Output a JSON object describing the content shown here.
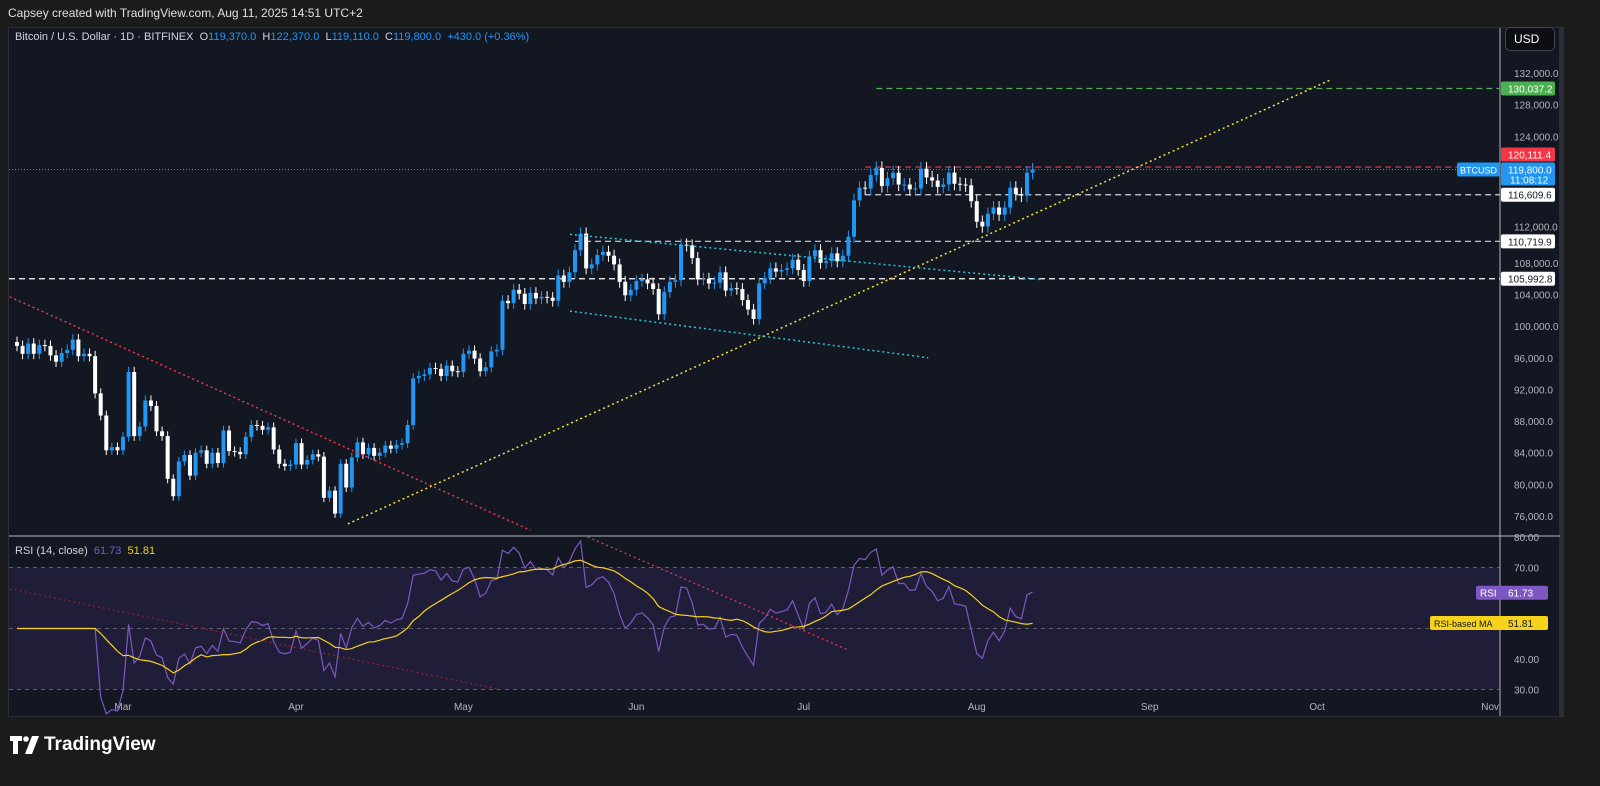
{
  "credit": "Capsey created with TradingView.com, Aug 11, 2025 14:51 UTC+2",
  "legend": {
    "symbol": "Bitcoin / U.S. Dollar · 1D · BITFINEX",
    "o_label": "O",
    "o": "119,370.0",
    "h_label": "H",
    "h": "122,370.0",
    "l_label": "L",
    "l": "119,110.0",
    "c_label": "C",
    "c": "119,800.0",
    "change": "+430.0 (+0.36%)"
  },
  "currency": "USD",
  "rsi_legend": {
    "title": "RSI (14, close)",
    "rsi": "61.73",
    "ma": "51.81"
  },
  "logo": "TradingView",
  "colors": {
    "up": "#2196f3",
    "down": "#ffffff",
    "rsi": "#7e57c2",
    "ma": "#f7d21b",
    "bg": "#131722"
  },
  "chart_data": [
    {
      "type": "candlestick",
      "title": "Bitcoin / U.S. Dollar · 1D · BITFINEX",
      "start_date": "Feb 10",
      "closes": [
        97.5,
        96.5,
        97.8,
        96.5,
        97.6,
        97.5,
        96.3,
        95.5,
        96.6,
        97,
        98.3,
        96.2,
        96.5,
        96.2,
        91.5,
        88.7,
        84.3,
        84.7,
        84.3,
        86,
        94.2,
        86.1,
        87.3,
        90.6,
        89.9,
        86.7,
        86.1,
        80.7,
        78.5,
        82.9,
        83.7,
        81.1,
        84,
        84.3,
        82.6,
        84,
        82.7,
        86.8,
        84.2,
        84.1,
        83.8,
        86,
        87.5,
        87.4,
        86.9,
        87.2,
        84.4,
        82.6,
        82.3,
        82.5,
        85.2,
        82.5,
        83.1,
        83.8,
        83.5,
        78.3,
        79.2,
        76.3,
        82.6,
        79.6,
        83.4,
        85.3,
        83.8,
        84.6,
        83.6,
        84,
        84.9,
        84.5,
        85,
        85.2,
        87.5,
        93.4,
        93.7,
        93.9,
        94.7,
        94.6,
        93.7,
        95,
        94.3,
        94.2,
        96.5,
        96.9,
        95.9,
        94.3,
        94.8,
        96.8,
        97,
        103.2,
        102.9,
        104.6,
        104.1,
        102.8,
        104.2,
        103.5,
        103.7,
        103.6,
        103.2,
        106.4,
        105.6,
        106.8,
        109.6,
        111.7,
        107.3,
        107.8,
        109,
        109.4,
        108.9,
        107.8,
        105.6,
        103.9,
        104.6,
        105.7,
        105.9,
        105.4,
        104.7,
        101.5,
        104.3,
        105.6,
        105.8,
        110.3,
        110.2,
        108.6,
        105.9,
        106,
        105.4,
        105.5,
        106.8,
        104.5,
        104.8,
        104.7,
        103.3,
        102.1,
        100.9,
        105.4,
        106.1,
        107.3,
        106.9,
        107.1,
        107.3,
        108.4,
        107.1,
        105.7,
        108.8,
        109.6,
        108,
        108.2,
        109.2,
        108.2,
        108.9,
        111.3,
        115.9,
        117.5,
        117.4,
        119.1,
        120,
        117.7,
        118.7,
        119.4,
        117.9,
        117.9,
        117.3,
        117.4,
        119.9,
        118.8,
        118.4,
        117.6,
        117.9,
        119.4,
        118,
        117.9,
        117.8,
        115.8,
        113.2,
        112.6,
        114.2,
        115,
        114.1,
        115,
        117.5,
        116.7,
        116.5,
        119.4,
        119.8
      ],
      "close_unit": "thousand USD",
      "y_ticks": [
        "132,000.0",
        "128,000.0",
        "124,000.0",
        "112,000.0",
        "108,000.0",
        "104,000.0",
        "100,000.0",
        "96,000.0",
        "92,000.0",
        "88,000.0",
        "84,000.0",
        "80,000.0",
        "76,000.0"
      ],
      "y_tick_values": [
        132000,
        128000,
        124000,
        112000,
        108000,
        104000,
        100000,
        96000,
        92000,
        88000,
        84000,
        80000,
        76000
      ],
      "x_ticks": [
        {
          "label": "Mar",
          "day": 19
        },
        {
          "label": "Apr",
          "day": 50
        },
        {
          "label": "May",
          "day": 80
        },
        {
          "label": "Jun",
          "day": 111
        },
        {
          "label": "Jul",
          "day": 141
        },
        {
          "label": "Aug",
          "day": 172
        },
        {
          "label": "Sep",
          "day": 203
        },
        {
          "label": "Oct",
          "day": 233
        },
        {
          "label": "Nov",
          "day": 264
        }
      ],
      "price_labels": [
        {
          "text": "130,037.2",
          "value": 130037.2,
          "bg": "#4caf50",
          "fg": "#ffffff",
          "line": "#4caf50",
          "from_day": 154
        },
        {
          "text": "120,111.4",
          "value": 120111.4,
          "bg": "#f23645",
          "fg": "#ffffff",
          "line": "#f23645",
          "from_day": 152
        },
        {
          "text": "116,609.6",
          "value": 116609.6,
          "bg": "#ffffff",
          "fg": "#131722",
          "line": "#d1d4dc",
          "from_day": 152
        },
        {
          "text": "110,719.9",
          "value": 110719.9,
          "bg": "#ffffff",
          "fg": "#131722",
          "line": "#d1d4dc",
          "from_day": 100
        },
        {
          "text": "105,992.8",
          "value": 105992.8,
          "bg": "#ffffff",
          "fg": "#131722",
          "line": "#ffffff",
          "from_day": -2
        }
      ],
      "last_price": {
        "symbol": "BTCUSD",
        "text": "119,800.0",
        "countdown": "11:08:12",
        "value": 119800
      },
      "trendlines": [
        {
          "color": "#f23645",
          "d1": -1.3,
          "p1": 103700,
          "d2": 92,
          "p2": 74200
        },
        {
          "color": "#f7e13b",
          "d1": 59.3,
          "p1": 75000,
          "d2": 235.3,
          "p2": 131100
        },
        {
          "color": "#26c6da",
          "d1": 99.1,
          "p1": 111600,
          "d2": 183.3,
          "p2": 105900
        },
        {
          "color": "#26c6da",
          "d1": 99.1,
          "p1": 101900,
          "d2": 163.3,
          "p2": 96000
        }
      ]
    },
    {
      "type": "line",
      "title": "RSI (14, close)",
      "series": [
        {
          "name": "RSI",
          "last": 61.73
        },
        {
          "name": "RSI-based MA",
          "last": 51.81
        }
      ],
      "y_ticks": [
        "80.00",
        "70.00",
        "40.00",
        "30.00"
      ],
      "y_tick_values": [
        80,
        70,
        40,
        30
      ],
      "bands": [
        70,
        50,
        30
      ],
      "trendlines": [
        {
          "color": "#f23645",
          "d1": 102.3,
          "v1": 80,
          "d2": 148.9,
          "v2": 43
        },
        {
          "color": "#8a1f2b",
          "d1": -1.3,
          "v1": 63,
          "d2": 86.6,
          "v2": 30
        }
      ]
    }
  ]
}
